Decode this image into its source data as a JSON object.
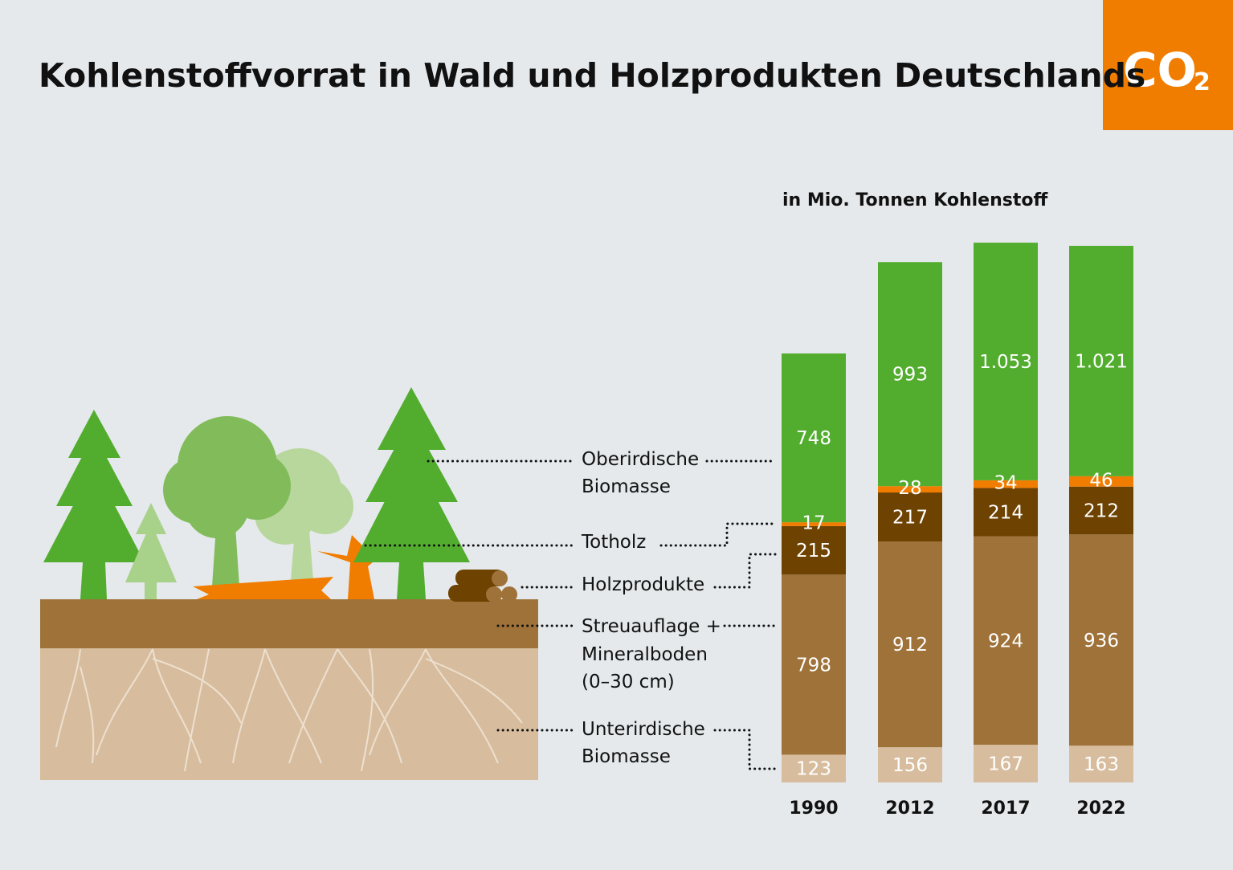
{
  "title": "Kohlenstoffvorrat in Wald und Holzprodukten Deutschlands",
  "badge": {
    "text": "CO",
    "subscript": "2",
    "color": "#f07d00"
  },
  "chart_data": {
    "type": "bar",
    "stacked": true,
    "title": "Kohlenstoffvorrat in Wald und Holzprodukten Deutschlands",
    "ylabel": "in Mio. Tonnen Kohlenstoff",
    "categories": [
      "1990",
      "2012",
      "2017",
      "2022"
    ],
    "series": [
      {
        "name": "Unterirdische Biomasse",
        "color": "#d7bd9d",
        "values": [
          123,
          156,
          167,
          163
        ],
        "labels": [
          "123",
          "156",
          "167",
          "163"
        ]
      },
      {
        "name": "Streuauflage + Mineralboden (0–30 cm)",
        "color": "#9e7239",
        "values": [
          798,
          912,
          924,
          936
        ],
        "labels": [
          "798",
          "912",
          "924",
          "936"
        ]
      },
      {
        "name": "Holzprodukte",
        "color": "#6e4200",
        "values": [
          215,
          217,
          214,
          212
        ],
        "labels": [
          "215",
          "217",
          "214",
          "212"
        ]
      },
      {
        "name": "Totholz",
        "color": "#f07d00",
        "values": [
          17,
          28,
          34,
          46
        ],
        "labels": [
          "17",
          "28",
          "34",
          "46"
        ]
      },
      {
        "name": "Oberirdische Biomasse",
        "color": "#52ad2e",
        "values": [
          748,
          993,
          1053,
          1021
        ],
        "labels": [
          "748",
          "993",
          "1.053",
          "1.021"
        ]
      }
    ]
  },
  "legend": {
    "oberirdisch": [
      "Oberirdische",
      "Biomasse"
    ],
    "totholz": "Totholz",
    "holzprodukte": "Holzprodukte",
    "streu": [
      "Streuauflage +",
      "Mineralboden",
      "(0–30 cm)"
    ],
    "unterirdisch": [
      "Unterirdische",
      "Biomasse"
    ]
  }
}
